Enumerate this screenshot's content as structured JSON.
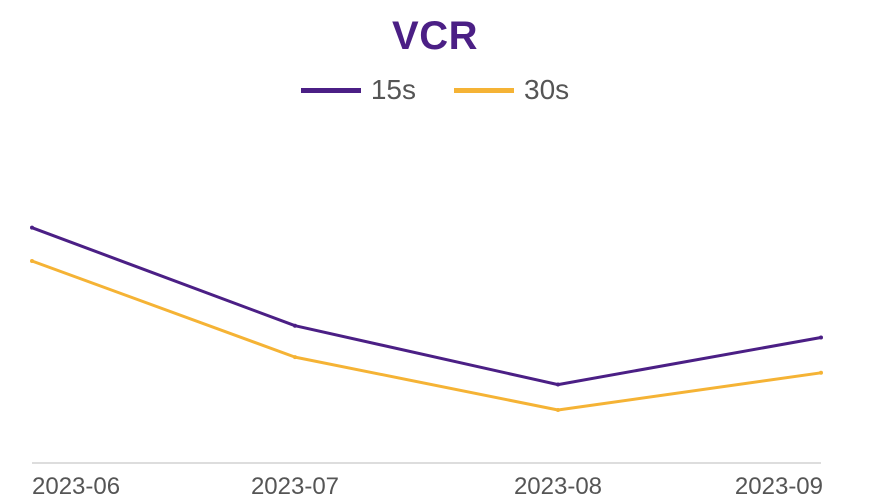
{
  "chart_data": {
    "type": "line",
    "title": "VCR",
    "categories": [
      "2023-06",
      "2023-07",
      "2023-08",
      "2023-09"
    ],
    "series": [
      {
        "name": "15s",
        "color": "#4b1f85",
        "values": [
          0.855,
          0.805,
          0.775,
          0.799
        ]
      },
      {
        "name": "30s",
        "color": "#f5b335",
        "values": [
          0.838,
          0.789,
          0.762,
          0.781
        ]
      }
    ],
    "ylim": [
      0.735,
      0.915
    ],
    "xlabel": "",
    "ylabel": "",
    "grid": false,
    "legend": "top-center"
  }
}
